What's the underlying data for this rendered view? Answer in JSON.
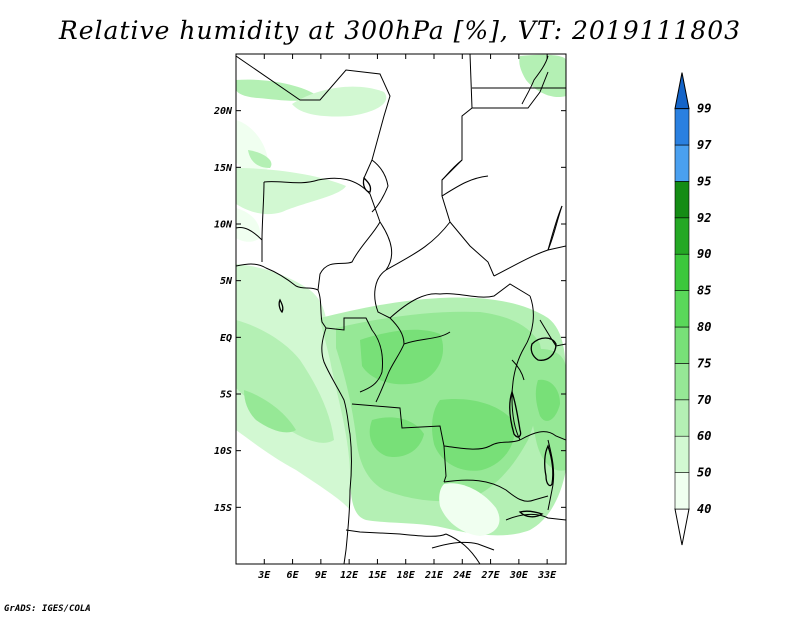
{
  "title": "Relative humidity at 300hPa [%], VT: 2019111803",
  "credit": "GrADS: IGES/COLA",
  "map": {
    "lon_range": [
      0,
      35
    ],
    "lat_range": [
      -20,
      25
    ],
    "lon_ticks": [
      {
        "value": 3,
        "label": "3E"
      },
      {
        "value": 6,
        "label": "6E"
      },
      {
        "value": 9,
        "label": "9E"
      },
      {
        "value": 12,
        "label": "12E"
      },
      {
        "value": 15,
        "label": "15E"
      },
      {
        "value": 18,
        "label": "18E"
      },
      {
        "value": 21,
        "label": "21E"
      },
      {
        "value": 24,
        "label": "24E"
      },
      {
        "value": 27,
        "label": "27E"
      },
      {
        "value": 30,
        "label": "30E"
      },
      {
        "value": 33,
        "label": "33E"
      }
    ],
    "lat_ticks": [
      {
        "value": 20,
        "label": "20N"
      },
      {
        "value": 15,
        "label": "15N"
      },
      {
        "value": 10,
        "label": "10N"
      },
      {
        "value": 5,
        "label": "5N"
      },
      {
        "value": 0,
        "label": "EQ"
      },
      {
        "value": -5,
        "label": "5S"
      },
      {
        "value": -10,
        "label": "10S"
      },
      {
        "value": -15,
        "label": "15S"
      }
    ]
  },
  "colorbar": {
    "levels": [
      "40",
      "50",
      "60",
      "70",
      "75",
      "80",
      "85",
      "90",
      "92",
      "95",
      "97",
      "99"
    ],
    "colors": [
      "#f0fff0",
      "#d2f8d2",
      "#b4f0b4",
      "#96e896",
      "#78e078",
      "#5ad85a",
      "#3cc83c",
      "#24a824",
      "#148c14",
      "#4aa0f0",
      "#2a80e0",
      "#1464c8"
    ],
    "under_color": "#ffffff",
    "over_color": "#1464c8"
  }
}
